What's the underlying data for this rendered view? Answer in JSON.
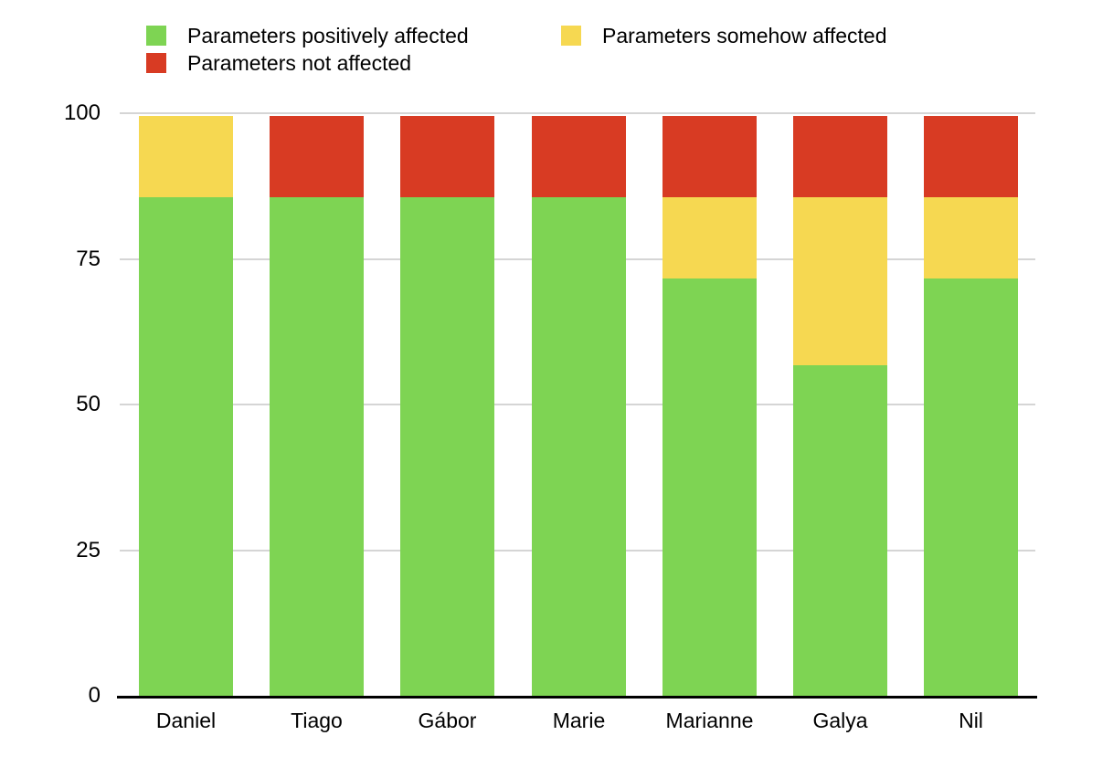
{
  "chart_data": {
    "type": "bar",
    "stacked": true,
    "title": "",
    "xlabel": "",
    "ylabel": "",
    "categories": [
      "Daniel",
      "Tiago",
      "Gábor",
      "Marie",
      "Marianne",
      "Galya",
      "Nil"
    ],
    "series": [
      {
        "name": "Parameters positively affected",
        "color": "#7ed453",
        "values": [
          86,
          86,
          86,
          86,
          72,
          57,
          72
        ]
      },
      {
        "name": "Parameters somehow affected",
        "color": "#f6d851",
        "values": [
          14,
          0,
          0,
          0,
          14,
          29,
          14
        ]
      },
      {
        "name": "Parameters not affected",
        "color": "#d83b23",
        "values": [
          0,
          14,
          14,
          14,
          14,
          14,
          14
        ]
      }
    ],
    "y_ticks": [
      "0",
      "25",
      "50",
      "75",
      "100"
    ],
    "ylim": [
      0,
      100
    ],
    "grid": "horizontal",
    "legend_position": "top",
    "colors": {
      "gridline": "#d5d5d5",
      "axis_line": "#000000",
      "text": "#000000",
      "background": "#ffffff"
    }
  }
}
